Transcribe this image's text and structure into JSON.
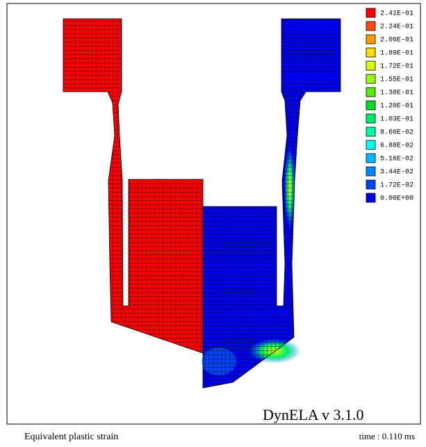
{
  "legend": [
    {
      "label": "2.41E-01",
      "color": "#ff0000"
    },
    {
      "label": "2.24E-01",
      "color": "#ff4a10"
    },
    {
      "label": "2.06E-01",
      "color": "#ff9a00"
    },
    {
      "label": "1.89E-01",
      "color": "#ffdd00"
    },
    {
      "label": "1.72E-01",
      "color": "#ddff00"
    },
    {
      "label": "1.55E-01",
      "color": "#99ff10"
    },
    {
      "label": "1.38E-01",
      "color": "#55ee10"
    },
    {
      "label": "1.20E-01",
      "color": "#00dd20"
    },
    {
      "label": "1.03E-01",
      "color": "#00ee66"
    },
    {
      "label": "8.60E-02",
      "color": "#00ffaa"
    },
    {
      "label": "6.88E-02",
      "color": "#00ffee"
    },
    {
      "label": "5.16E-02",
      "color": "#00bbff"
    },
    {
      "label": "3.44E-02",
      "color": "#0088ff"
    },
    {
      "label": "1.72E-02",
      "color": "#0044ff"
    },
    {
      "label": "0.00E+00",
      "color": "#0000ee"
    }
  ],
  "watermark": "DynELA v 3.1.0",
  "footer": {
    "quantity": "Equivalent plastic strain",
    "time": "time : 0.110 ms"
  }
}
